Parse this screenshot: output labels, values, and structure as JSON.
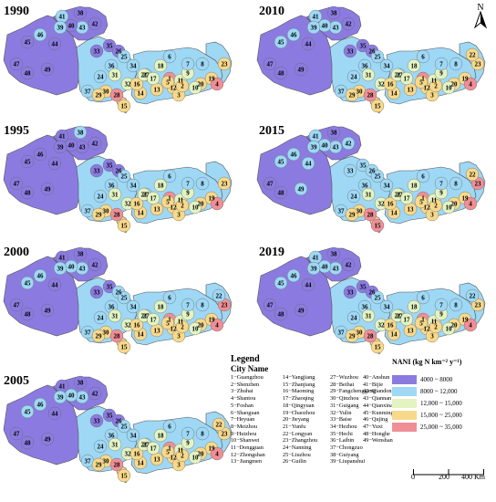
{
  "maps": [
    {
      "year": "1990",
      "labels": [
        "41",
        "38",
        "42",
        "43",
        "40",
        "39",
        "45",
        "46",
        "44",
        "47",
        "48",
        "49",
        "33",
        "36",
        "35",
        "26",
        "34",
        "37",
        "32",
        "31",
        "30",
        "28",
        "29",
        "15",
        "14",
        "16",
        "13",
        "24",
        "25",
        "27",
        "20",
        "21",
        "18",
        "17",
        "19",
        "1",
        "12",
        "11",
        "10",
        "9",
        "8",
        "7",
        "6",
        "23",
        "5",
        "4",
        "3",
        "2"
      ]
    },
    {
      "year": "2010",
      "labels": [
        "41",
        "38",
        "42",
        "43",
        "40",
        "39",
        "45",
        "46",
        "44",
        "47",
        "48",
        "49",
        "33",
        "36",
        "35",
        "26",
        "34",
        "37",
        "32",
        "31",
        "30",
        "28",
        "29",
        "15",
        "14",
        "16",
        "13",
        "24",
        "25",
        "27",
        "20",
        "21",
        "18",
        "17",
        "19",
        "1",
        "12",
        "11",
        "10",
        "9",
        "8",
        "7",
        "6",
        "23",
        "5",
        "4",
        "3",
        "2",
        "22"
      ]
    },
    {
      "year": "1995",
      "labels": [
        "41",
        "38",
        "42",
        "43",
        "40",
        "39",
        "45",
        "46",
        "44",
        "47",
        "48",
        "49",
        "33",
        "36",
        "35",
        "26",
        "34",
        "37",
        "32",
        "31",
        "30",
        "28",
        "29",
        "15",
        "14",
        "16",
        "13",
        "24",
        "25",
        "27",
        "20",
        "21",
        "18",
        "17",
        "19",
        "1",
        "12",
        "11",
        "10",
        "9",
        "8",
        "7",
        "6",
        "23",
        "5",
        "4",
        "3",
        "2"
      ]
    },
    {
      "year": "2015",
      "labels": [
        "41",
        "38",
        "42",
        "43",
        "40",
        "39",
        "45",
        "46",
        "44",
        "47",
        "48",
        "49",
        "33",
        "36",
        "35",
        "26",
        "34",
        "37",
        "32",
        "31",
        "30",
        "28",
        "29",
        "15",
        "14",
        "16",
        "13",
        "24",
        "25",
        "27",
        "20",
        "21",
        "18",
        "17",
        "19",
        "1",
        "12",
        "11",
        "10",
        "9",
        "8",
        "7",
        "6",
        "23",
        "5",
        "4",
        "3",
        "2",
        "22"
      ]
    },
    {
      "year": "2000",
      "labels": [
        "41",
        "38",
        "42",
        "43",
        "40",
        "39",
        "45",
        "46",
        "44",
        "47",
        "48",
        "49",
        "33",
        "36",
        "35",
        "26",
        "34",
        "37",
        "32",
        "31",
        "30",
        "28",
        "29",
        "15",
        "14",
        "16",
        "13",
        "24",
        "25",
        "27",
        "20",
        "21",
        "18",
        "17",
        "19",
        "1",
        "12",
        "11",
        "10",
        "9",
        "8",
        "7",
        "6",
        "23",
        "5",
        "4",
        "3",
        "2",
        "22"
      ]
    },
    {
      "year": "2019",
      "labels": [
        "41",
        "38",
        "42",
        "43",
        "40",
        "39",
        "45",
        "46",
        "44",
        "47",
        "48",
        "49",
        "33",
        "36",
        "35",
        "26",
        "34",
        "37",
        "32",
        "31",
        "30",
        "28",
        "29",
        "15",
        "14",
        "16",
        "13",
        "24",
        "25",
        "27",
        "20",
        "21",
        "18",
        "17",
        "19",
        "1",
        "12",
        "11",
        "10",
        "9",
        "8",
        "7",
        "6",
        "23",
        "5",
        "4",
        "3",
        "2",
        "22"
      ]
    },
    {
      "year": "2005",
      "labels": [
        "41",
        "38",
        "42",
        "43",
        "40",
        "39",
        "45",
        "46",
        "44",
        "47",
        "48",
        "49",
        "33",
        "36",
        "35",
        "26",
        "34",
        "37",
        "32",
        "31",
        "30",
        "28",
        "29",
        "15",
        "14",
        "16",
        "13",
        "24",
        "25",
        "27",
        "20",
        "21",
        "18",
        "17",
        "19",
        "1",
        "12",
        "11",
        "10",
        "9",
        "8",
        "7",
        "6",
        "23",
        "5",
        "4",
        "3",
        "2",
        "22"
      ]
    }
  ],
  "legend": {
    "title": "Legend",
    "subtitle": "City Name",
    "columns": [
      [
        "1−Guangzhou",
        "2−Shenzhen",
        "3−Zhuhai",
        "4−Shantou",
        "5−Foshan",
        "6−Shaoguan",
        "7−Heyuan",
        "8−Meizhou",
        "9−Huizhou",
        "10−Shanwei",
        "11−Dongguan",
        "12−Zhongshan",
        "13−Jiangmen"
      ],
      [
        "14−Yangjiang",
        "15−Zhanjiang",
        "16−Maoming",
        "17−Zhaoqing",
        "18−Qingyuan",
        "19−Chaozhou",
        "20−Jieyang",
        "21−Yunfu",
        "22−Longyan",
        "23−Zhangzhou",
        "24−Nanning",
        "25−Liuzhou",
        "26−Guilin"
      ],
      [
        "27−Wuzhou",
        "28−Beihai",
        "29−Fangchenggang",
        "30−Qinzhou",
        "31−Guigang",
        "32−Yulin",
        "33−Baise",
        "34−Hezhou",
        "35−Hechi",
        "36−Laibin",
        "37−Chongzuo",
        "38−Guiyang",
        "39−Liupanshui"
      ],
      [
        "40−Anshun",
        "41−Bijie",
        "42−Qiandongnan",
        "43−Qiannan",
        "44−Qianxinan",
        "45−Kunming",
        "46−Qujing",
        "47−Yuxi",
        "48−Honghe",
        "49−Wenshan"
      ]
    ]
  },
  "nani": {
    "title": "NANI (kg N km⁻² y⁻¹)",
    "classes": [
      {
        "label": "4000 ~ 8000",
        "color": "#8B7BE0"
      },
      {
        "label": "8000 ~ 12,000",
        "color": "#9ED8F5"
      },
      {
        "label": "12,000 ~ 15,000",
        "color": "#E3F3C2"
      },
      {
        "label": "15,000 ~ 25,000",
        "color": "#F8D98B"
      },
      {
        "label": "25,000 ~ 35,000",
        "color": "#F08E96"
      }
    ]
  },
  "north_label": "N",
  "scale": {
    "labels": [
      "0",
      "200",
      "400 Km"
    ]
  }
}
